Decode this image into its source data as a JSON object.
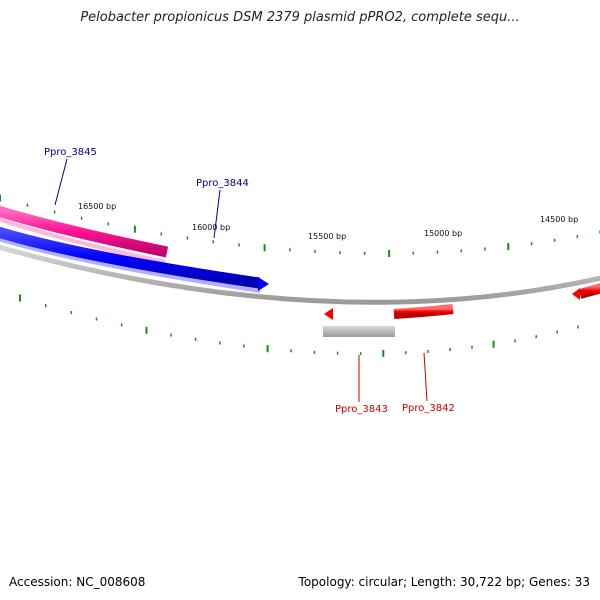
{
  "title": "Pelobacter propionicus DSM 2379 plasmid pPRO2, complete sequ...",
  "footer": {
    "accession": "Accession: NC_008608",
    "summary": "Topology: circular; Length: 30,722 bp; Genes: 33"
  },
  "bp_labels": [
    "16500 bp",
    "16000 bp",
    "15500 bp",
    "15000 bp",
    "14500 bp"
  ],
  "genes": [
    {
      "name": "Ppro_3845",
      "color": "#ff1493",
      "strand": "outer"
    },
    {
      "name": "Ppro_3844",
      "color": "#0000ff",
      "strand": "outer"
    },
    {
      "name": "Ppro_3843",
      "color": "#ff0000",
      "strand": "inner"
    },
    {
      "name": "Ppro_3842",
      "color": "#ff0000",
      "strand": "inner"
    }
  ],
  "colors": {
    "forward_label": "#00008b",
    "reverse_label": "#cc0000",
    "tick": "#1a8a1a",
    "backbone": "#808080"
  }
}
